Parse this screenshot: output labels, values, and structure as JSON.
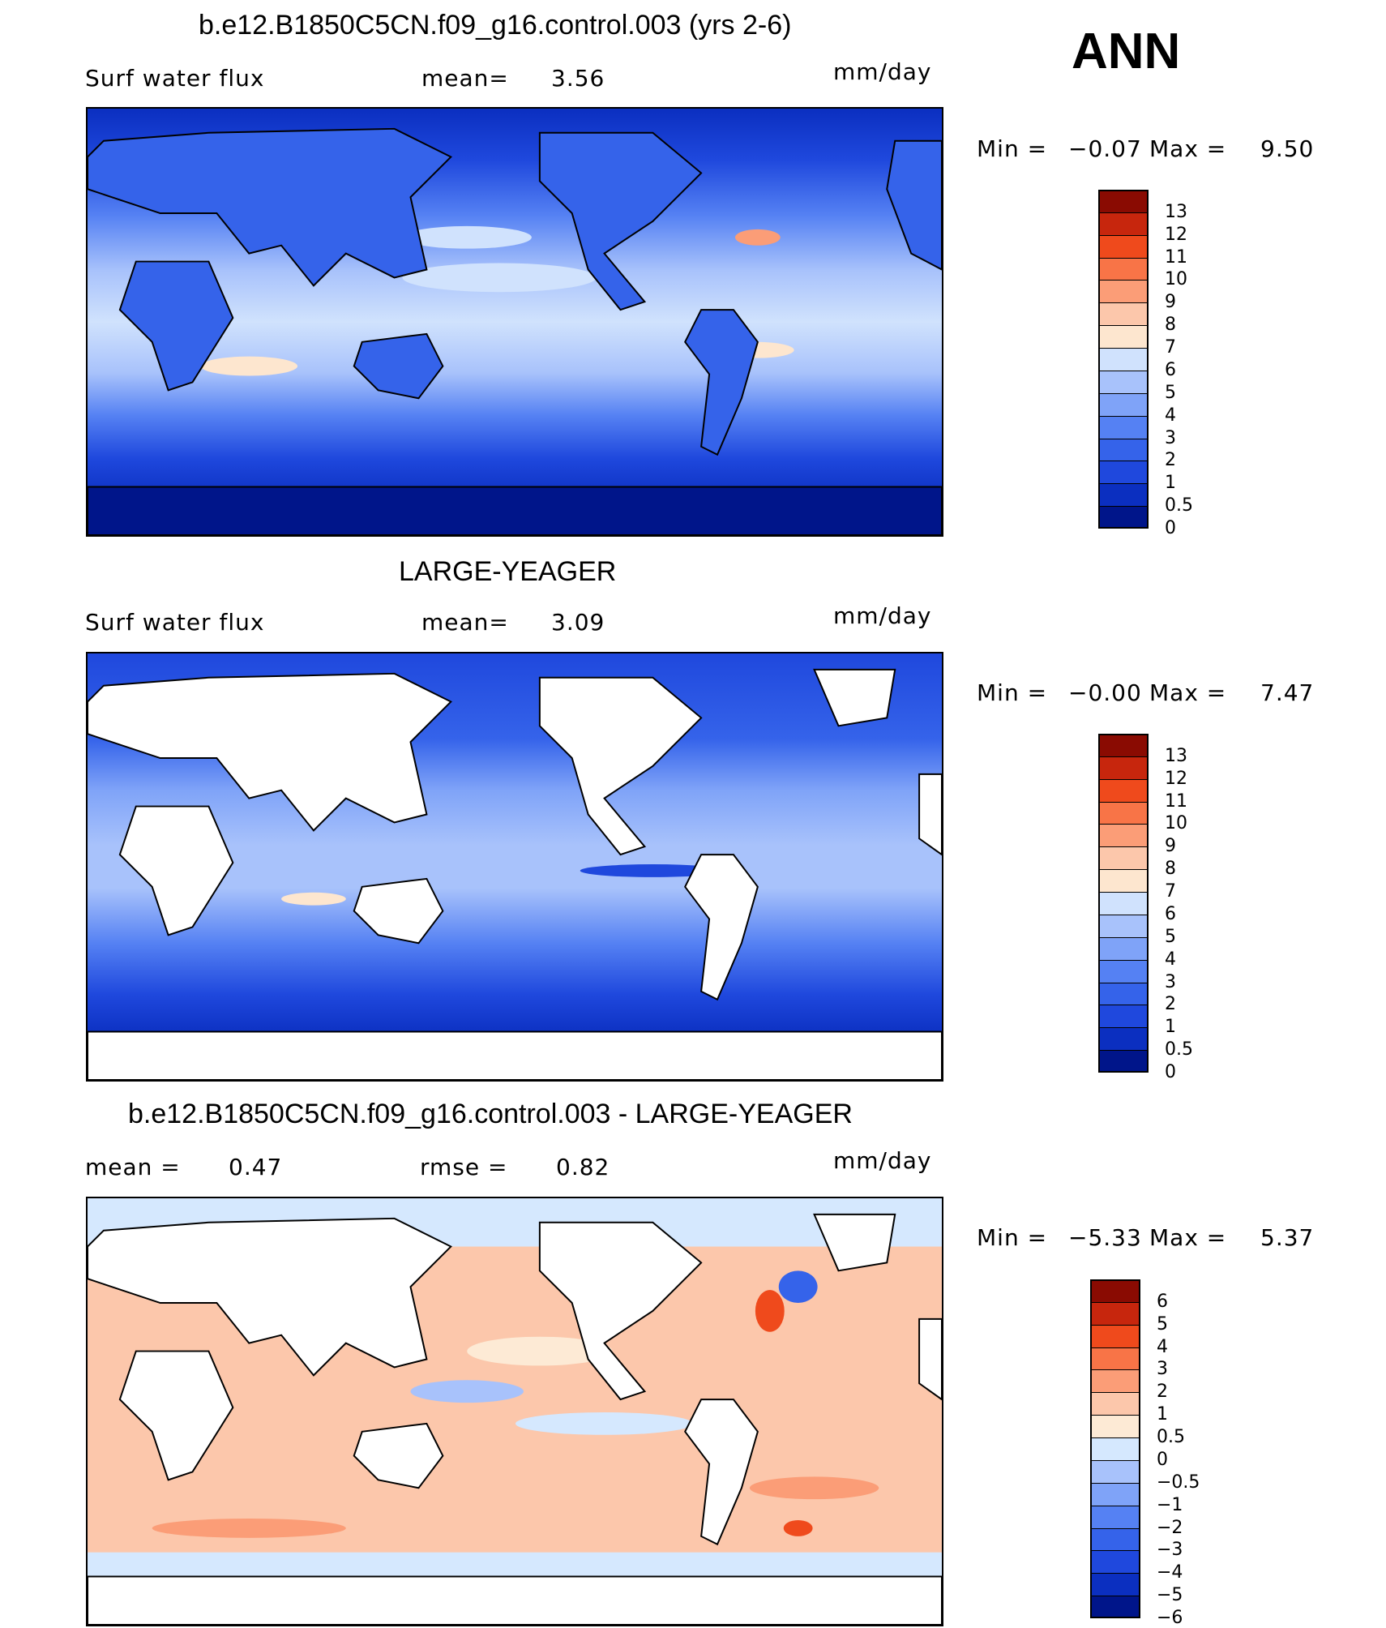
{
  "header": {
    "season": "ANN"
  },
  "panels": [
    {
      "title": "b.e12.B1850C5CN.f09_g16.control.003 (yrs 2-6)",
      "left_label": "Surf water flux",
      "mid_label": "mean=",
      "mid_value": "3.56",
      "units": "mm/day",
      "min_label": "Min =",
      "min_value": "−0.07",
      "max_label": "Max =",
      "max_value": "9.50",
      "colorbar_labels": [
        "13",
        "12",
        "11",
        "10",
        "9",
        "8",
        "7",
        "6",
        "5",
        "4",
        "3",
        "2",
        "1",
        "0.5",
        "0"
      ]
    },
    {
      "title": "LARGE-YEAGER",
      "left_label": "Surf water flux",
      "mid_label": "mean=",
      "mid_value": "3.09",
      "units": "mm/day",
      "min_label": "Min =",
      "min_value": "−0.00",
      "max_label": "Max =",
      "max_value": "7.47",
      "colorbar_labels": [
        "13",
        "12",
        "11",
        "10",
        "9",
        "8",
        "7",
        "6",
        "5",
        "4",
        "3",
        "2",
        "1",
        "0.5",
        "0"
      ]
    },
    {
      "title": "b.e12.B1850C5CN.f09_g16.control.003 - LARGE-YEAGER",
      "left_label": "mean =",
      "left_value": "0.47",
      "mid_label": "rmse =",
      "mid_value": "0.82",
      "units": "mm/day",
      "min_label": "Min =",
      "min_value": "−5.33",
      "max_label": "Max =",
      "max_value": "5.37",
      "colorbar_labels": [
        "6",
        "5",
        "4",
        "3",
        "2",
        "1",
        "0.5",
        "0",
        "−0.5",
        "−1",
        "−2",
        "−3",
        "−4",
        "−5",
        "−6"
      ]
    }
  ],
  "colors": {
    "abs_scale": [
      "#00158a",
      "#0b2fc0",
      "#1f48dd",
      "#3563ea",
      "#5581f3",
      "#7fa3f8",
      "#a8c2fb",
      "#d0e2fd",
      "#fde6cf",
      "#fcc7ab",
      "#fb9d77",
      "#f87447",
      "#ef4a1c",
      "#c7260d",
      "#8a0b02"
    ],
    "diff_scale": [
      "#00158a",
      "#0b2fc0",
      "#1f48dd",
      "#3563ea",
      "#5581f3",
      "#7fa3f8",
      "#a8c2fb",
      "#d5e8fe",
      "#fdead5",
      "#fcc7ab",
      "#fb9d77",
      "#f87447",
      "#ef4a1c",
      "#c7260d",
      "#8a0b02"
    ],
    "land": "#ffffff",
    "coast": "#000000"
  }
}
